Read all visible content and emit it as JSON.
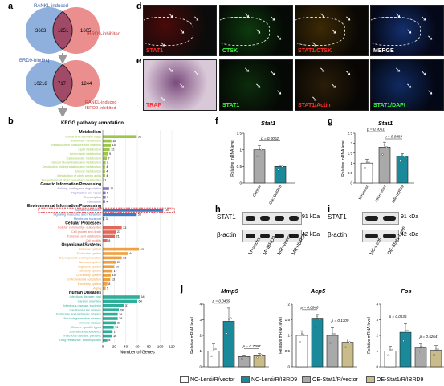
{
  "panel_labels": {
    "a": "a",
    "b": "b",
    "c": "c",
    "d": "d",
    "e": "e",
    "f": "f",
    "g": "g",
    "h": "h",
    "i": "i",
    "j": "j"
  },
  "venn": {
    "top": {
      "left_title": "RANKL-induced",
      "right_title": "IBRD9-inhibited",
      "left_only": "3663",
      "overlap": "1851",
      "right_only": "1605"
    },
    "bottom": {
      "left_title": "BRD9-binding",
      "right_title": "RANKL-induced\nIBRD9-inhibited",
      "left_only": "10218",
      "overlap": "717",
      "right_only": "1244"
    },
    "colors": {
      "blue": "#8fb0dc",
      "red": "#e77a7a",
      "overlap": "#a14a67"
    }
  },
  "micro_d": {
    "labels": [
      "STAT1",
      "CTSK",
      "STAT1/CTSK",
      "MERGE"
    ]
  },
  "micro_e": {
    "labels": [
      "TRAP",
      "STAT1",
      "STAT1/Actin",
      "STAT1/DAPI"
    ]
  },
  "blots": {
    "h": {
      "row_labels": [
        "STAT1",
        "β-actin"
      ],
      "sizes": [
        "91 kDa",
        "42 kDa"
      ],
      "lanes": [
        "M+vector",
        "M+IBRD9",
        "MR+vector",
        "MR+IBRD9"
      ]
    },
    "i": {
      "row_labels": [
        "STAT1",
        "β-actin"
      ],
      "sizes": [
        "91 kDa",
        "42 kDa"
      ],
      "lanes": [
        "NC-Lenti",
        "OE-Stat1-Lenti"
      ]
    }
  },
  "legend_j": {
    "items": [
      {
        "label": "NC-Lenti/R/vector",
        "color": "#ffffff"
      },
      {
        "label": "NC-Lenti/R/IBRD9",
        "color": "#1a8a9a"
      },
      {
        "label": "OE-Stat1/R/vector",
        "color": "#a9a9a9"
      },
      {
        "label": "OE-Stat1/R/IBRD9",
        "color": "#c9bc8a"
      }
    ]
  },
  "chart_data": [
    {
      "id": "b",
      "type": "bar",
      "orientation": "horizontal",
      "title": "KEGG pathway annotation",
      "xlabel": "Number of Genes",
      "xlim": [
        0,
        120
      ],
      "xticks": [
        0,
        20,
        40,
        60,
        80,
        100,
        120
      ],
      "groups": [
        {
          "name": "Metabolism",
          "color": "#9bc84a",
          "items": [
            {
              "label": "Global and overview maps",
              "value": 59
            },
            {
              "label": "Nucleotide metabolism",
              "value": 15
            },
            {
              "label": "Metabolism of cofactors and vitamins",
              "value": 14
            },
            {
              "label": "Lipid metabolism",
              "value": 12
            },
            {
              "label": "Amino acid metabolism",
              "value": 9
            },
            {
              "label": "Carbohydrate metabolism",
              "value": 7
            },
            {
              "label": "Glycan biosynthesis and metabolism",
              "value": 5
            },
            {
              "label": "Xenobiotics biodegradation and metabolism",
              "value": 4
            },
            {
              "label": "Energy metabolism",
              "value": 4
            },
            {
              "label": "Metabolism of other amino acids",
              "value": 4
            },
            {
              "label": "Biosynthesis of other secondary metabolites",
              "value": 1
            }
          ]
        },
        {
          "name": "Genetic Information Processing",
          "color": "#8a78c0",
          "items": [
            {
              "label": "Folding, sorting and degradation",
              "value": 11
            },
            {
              "label": "Replication and repair",
              "value": 5
            },
            {
              "label": "Transcription",
              "value": 5
            },
            {
              "label": "Translation",
              "value": 4
            }
          ]
        },
        {
          "name": "Environmental Information Processing",
          "color": "#3a7cc8",
          "items": [
            {
              "label": "Signal transduction",
              "value": 105
            },
            {
              "label": "Signaling molecules and interaction",
              "value": 59
            },
            {
              "label": "Membrane transport",
              "value": 3
            }
          ]
        },
        {
          "name": "Cellular Processes",
          "color": "#e2685a",
          "items": [
            {
              "label": "Cellular community - eukaryotes",
              "value": 33
            },
            {
              "label": "Cell growth and death",
              "value": 23
            },
            {
              "label": "Transport and catabolism",
              "value": 21
            },
            {
              "label": "Cell motility",
              "value": 8
            }
          ]
        },
        {
          "name": "Organismal Systems",
          "color": "#f0a040",
          "items": [
            {
              "label": "Immune system",
              "value": 63
            },
            {
              "label": "Endocrine system",
              "value": 44
            },
            {
              "label": "Development and regeneration",
              "value": 33
            },
            {
              "label": "Nervous system",
              "value": 23
            },
            {
              "label": "Digestive system",
              "value": 20
            },
            {
              "label": "Sensory system",
              "value": 17
            },
            {
              "label": "Circulatory system",
              "value": 14
            },
            {
              "label": "Environmental adaptation",
              "value": 13
            },
            {
              "label": "Excretory system",
              "value": 8
            },
            {
              "label": "Aging",
              "value": 5
            }
          ]
        },
        {
          "name": "Human Diseases",
          "color": "#2fae9a",
          "items": [
            {
              "label": "Infectious disease: viral",
              "value": 64
            },
            {
              "label": "Cancer: overview",
              "value": 60
            },
            {
              "label": "Infectious disease: bacterial",
              "value": 37
            },
            {
              "label": "Cardiovascular disease",
              "value": 28
            },
            {
              "label": "Endocrine and metabolic disease",
              "value": 26
            },
            {
              "label": "Neurodegenerative disease",
              "value": 26
            },
            {
              "label": "Immune disease",
              "value": 23
            },
            {
              "label": "Cancer: specific types",
              "value": 19
            },
            {
              "label": "Substance dependence",
              "value": 17
            },
            {
              "label": "Infectious disease: parasitic",
              "value": 16
            },
            {
              "label": "Drug resistance: antineoplastic",
              "value": 8
            }
          ]
        }
      ]
    },
    {
      "id": "f",
      "type": "bar",
      "title": "Stat1",
      "ylabel": "Relative mRNA level",
      "ylim": [
        0,
        1.5
      ],
      "yticks": [
        0,
        0.5,
        1.0,
        1.5
      ],
      "categories": [
        "Control",
        "LysM-Cre; Brd9fl/fl"
      ],
      "values": [
        1.0,
        0.5
      ],
      "errors": [
        0.12,
        0.05
      ],
      "colors": [
        "#a9a9a9",
        "#1a8a9a"
      ],
      "pvalues": [
        {
          "pair": [
            0,
            1
          ],
          "text": "p = 0.0002"
        }
      ]
    },
    {
      "id": "g",
      "type": "bar",
      "title": "Stat1",
      "ylabel": "Relative mRNA level",
      "ylim": [
        0,
        2.5
      ],
      "yticks": [
        0,
        0.5,
        1.0,
        1.5,
        2.0,
        2.5
      ],
      "categories": [
        "M+vector",
        "MR+vector",
        "MR+IBRD9"
      ],
      "values": [
        1.0,
        1.8,
        1.35
      ],
      "errors": [
        0.2,
        0.25,
        0.12
      ],
      "colors": [
        "#ffffff",
        "#a9a9a9",
        "#1a8a9a"
      ],
      "pvalues": [
        {
          "pair": [
            0,
            1
          ],
          "text": "p = 0.0061"
        },
        {
          "pair": [
            1,
            2
          ],
          "text": "p = 0.0389"
        }
      ]
    },
    {
      "id": "j1",
      "type": "bar",
      "title": "Mmp9",
      "ylabel": "Relative mRNA level",
      "ylim": [
        0,
        4
      ],
      "yticks": [
        0,
        1,
        2,
        3,
        4
      ],
      "categories": [
        "NC-Lenti/R/vector",
        "NC-Lenti/R/IBRD9",
        "OE-Stat1/R/vector",
        "OE-Stat1/R/IBRD9"
      ],
      "values": [
        1.0,
        2.9,
        0.65,
        0.75
      ],
      "errors": [
        0.45,
        0.85,
        0.1,
        0.1
      ],
      "colors": [
        "#ffffff",
        "#1a8a9a",
        "#a9a9a9",
        "#c9bc8a"
      ],
      "pvalues": [
        {
          "pair": [
            0,
            1
          ],
          "text": "p = 0.0439"
        },
        {
          "pair": [
            2,
            3
          ],
          "text": "p = 0.7097"
        }
      ]
    },
    {
      "id": "j2",
      "type": "bar",
      "title": "Acp5",
      "ylabel": "Relative mRNA level",
      "ylim": [
        0,
        2.0
      ],
      "yticks": [
        0,
        0.5,
        1.0,
        1.5,
        2.0
      ],
      "categories": [
        "NC-Lenti/R/vector",
        "NC-Lenti/R/IBRD9",
        "OE-Stat1/R/vector",
        "OE-Stat1/R/IBRD9"
      ],
      "values": [
        1.0,
        1.55,
        1.0,
        0.78
      ],
      "errors": [
        0.15,
        0.12,
        0.25,
        0.1
      ],
      "colors": [
        "#ffffff",
        "#1a8a9a",
        "#a9a9a9",
        "#c9bc8a"
      ],
      "pvalues": [
        {
          "pair": [
            0,
            1
          ],
          "text": "p = 0.0046"
        },
        {
          "pair": [
            2,
            3
          ],
          "text": "p = 0.1309"
        }
      ]
    },
    {
      "id": "j3",
      "type": "bar",
      "title": "Fos",
      "ylabel": "Relative mRNA level",
      "ylim": [
        0,
        4
      ],
      "yticks": [
        0,
        1,
        2,
        3,
        4
      ],
      "categories": [
        "NC-Lenti/R/vector",
        "NC-Lenti/R/IBRD9",
        "OE-Stat1/R/vector",
        "OE-Stat1/R/IBRD9"
      ],
      "values": [
        1.0,
        2.2,
        1.2,
        1.05
      ],
      "errors": [
        0.3,
        0.55,
        0.25,
        0.3
      ],
      "colors": [
        "#ffffff",
        "#1a8a9a",
        "#a9a9a9",
        "#c9bc8a"
      ],
      "pvalues": [
        {
          "pair": [
            0,
            1
          ],
          "text": "p = 0.0135"
        },
        {
          "pair": [
            2,
            3
          ],
          "text": "p = 0.5264"
        }
      ]
    }
  ]
}
